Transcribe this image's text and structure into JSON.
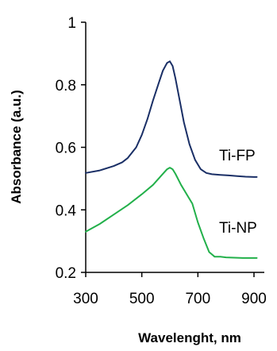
{
  "chart_data": {
    "type": "line",
    "xlabel": "Wavelenght, nm",
    "ylabel": "Absorbance (a.u.)",
    "xlim": [
      300,
      900
    ],
    "ylim": [
      0.2,
      1.0
    ],
    "xticks": [
      300,
      500,
      700,
      900
    ],
    "yticks": [
      0.2,
      0.4,
      0.6,
      0.8,
      1.0
    ],
    "ytick_labels": [
      "0.2",
      "0.4",
      "0.6",
      "0.8",
      "1"
    ],
    "grid": false,
    "legend": "none",
    "series": [
      {
        "name": "Ti-FP",
        "color": "#1a2f66",
        "x": [
          300,
          350,
          400,
          430,
          450,
          480,
          500,
          520,
          540,
          560,
          575,
          590,
          600,
          610,
          620,
          635,
          650,
          670,
          690,
          710,
          730,
          750,
          780,
          810,
          840,
          870,
          900,
          910
        ],
        "y": [
          0.518,
          0.526,
          0.54,
          0.552,
          0.566,
          0.6,
          0.64,
          0.69,
          0.75,
          0.805,
          0.845,
          0.87,
          0.875,
          0.86,
          0.82,
          0.75,
          0.68,
          0.61,
          0.56,
          0.53,
          0.518,
          0.514,
          0.512,
          0.51,
          0.508,
          0.506,
          0.505,
          0.505
        ]
      },
      {
        "name": "Ti-NP",
        "color": "#22b04a",
        "x": [
          300,
          350,
          400,
          450,
          500,
          540,
          570,
          590,
          600,
          610,
          620,
          640,
          660,
          680,
          700,
          720,
          740,
          760,
          780,
          800,
          830,
          860,
          900,
          910
        ],
        "y": [
          0.33,
          0.355,
          0.385,
          0.415,
          0.45,
          0.48,
          0.51,
          0.53,
          0.535,
          0.53,
          0.515,
          0.48,
          0.45,
          0.42,
          0.36,
          0.31,
          0.265,
          0.25,
          0.25,
          0.248,
          0.247,
          0.246,
          0.246,
          0.246
        ]
      }
    ]
  }
}
